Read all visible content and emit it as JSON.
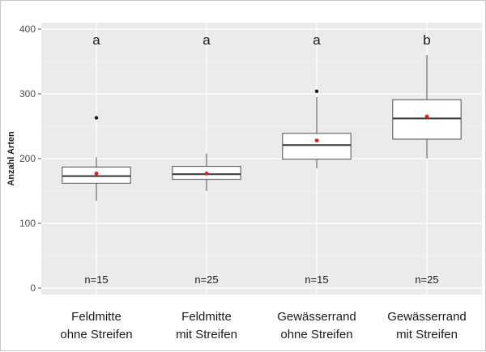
{
  "chart_data": {
    "type": "box",
    "title": "",
    "xlabel": "",
    "ylabel": "Anzahl Arten",
    "ylim": [
      -10,
      410
    ],
    "yticks": [
      0,
      100,
      200,
      300,
      400
    ],
    "grid": true,
    "categories": [
      {
        "line1": "Feldmitte",
        "line2": "ohne Streifen"
      },
      {
        "line1": "Feldmitte",
        "line2": "mit Streifen"
      },
      {
        "line1": "Gewässerrand",
        "line2": "ohne Streifen"
      },
      {
        "line1": "Gewässerrand",
        "line2": "mit Streifen"
      }
    ],
    "boxes": [
      {
        "whisker_low": 135,
        "q1": 162,
        "median": 173,
        "q3": 187,
        "whisker_high": 202,
        "mean": 177,
        "outliers": [
          263
        ],
        "n_label": "n=15",
        "sig": "a"
      },
      {
        "whisker_low": 150,
        "q1": 168,
        "median": 176,
        "q3": 188,
        "whisker_high": 208,
        "mean": 177,
        "outliers": [],
        "n_label": "n=25",
        "sig": "a"
      },
      {
        "whisker_low": 185,
        "q1": 199,
        "median": 221,
        "q3": 239,
        "whisker_high": 295,
        "mean": 228,
        "outliers": [
          304
        ],
        "n_label": "n=15",
        "sig": "a"
      },
      {
        "whisker_low": 200,
        "q1": 230,
        "median": 262,
        "q3": 291,
        "whisker_high": 360,
        "mean": 265,
        "outliers": [],
        "n_label": "n=25",
        "sig": "b"
      }
    ],
    "colors": {
      "panel": "#ebebeb",
      "grid": "#ffffff",
      "box_fill": "#ffffff",
      "box_line": "#4d4d4d",
      "mean": "#e41a1c",
      "outlier": "#1a1a1a"
    }
  }
}
